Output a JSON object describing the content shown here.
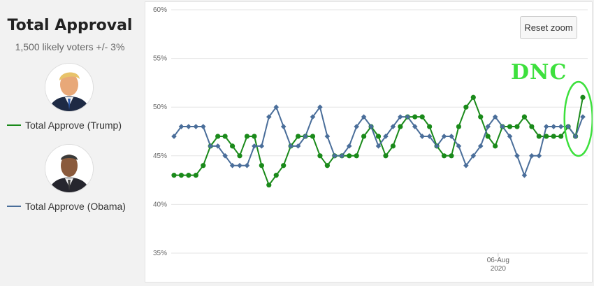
{
  "sidebar": {
    "title": "Total Approval",
    "subtitle": "1,500 likely voters +/- 3%",
    "legend": [
      {
        "label": "Total Approve (Trump)",
        "color": "#1a8a1a",
        "avatar": "trump-portrait"
      },
      {
        "label": "Total Approve (Obama)",
        "color": "#4a6e9a",
        "avatar": "obama-portrait"
      }
    ]
  },
  "toolbar": {
    "reset_zoom_label": "Reset zoom"
  },
  "annotation": {
    "text": "DNC",
    "color": "#3de03d"
  },
  "chart_data": {
    "type": "line",
    "ylim": [
      35,
      60
    ],
    "yticks": [
      35,
      40,
      45,
      50,
      55,
      60
    ],
    "ytick_labels": [
      "35%",
      "40%",
      "45%",
      "50%",
      "55%",
      "60%"
    ],
    "xtick_labels": [
      {
        "line1": "06-Aug",
        "line2": "2020"
      }
    ],
    "grid": true,
    "colors": {
      "trump": "#1a8a1a",
      "obama": "#4a6e9a"
    },
    "series": [
      {
        "name": "Total Approve (Trump)",
        "marker": "circle",
        "values": [
          43,
          43,
          43,
          43,
          44,
          46,
          47,
          47,
          46,
          45,
          47,
          47,
          44,
          42,
          43,
          44,
          46,
          47,
          47,
          47,
          45,
          44,
          45,
          45,
          45,
          45,
          47,
          48,
          47,
          45,
          46,
          48,
          49,
          49,
          49,
          48,
          46,
          45,
          45,
          48,
          50,
          51,
          49,
          47,
          46,
          48,
          48,
          48,
          49,
          48,
          47,
          47,
          47,
          47,
          48,
          47,
          51
        ]
      },
      {
        "name": "Total Approve (Obama)",
        "marker": "diamond",
        "values": [
          47,
          48,
          48,
          48,
          48,
          46,
          46,
          45,
          44,
          44,
          44,
          46,
          46,
          49,
          50,
          48,
          46,
          46,
          47,
          49,
          50,
          47,
          45,
          45,
          46,
          48,
          49,
          48,
          46,
          47,
          48,
          49,
          49,
          48,
          47,
          47,
          46,
          47,
          47,
          46,
          44,
          45,
          46,
          48,
          49,
          48,
          47,
          45,
          43,
          45,
          45,
          48,
          48,
          48,
          48,
          47,
          49
        ]
      }
    ]
  }
}
